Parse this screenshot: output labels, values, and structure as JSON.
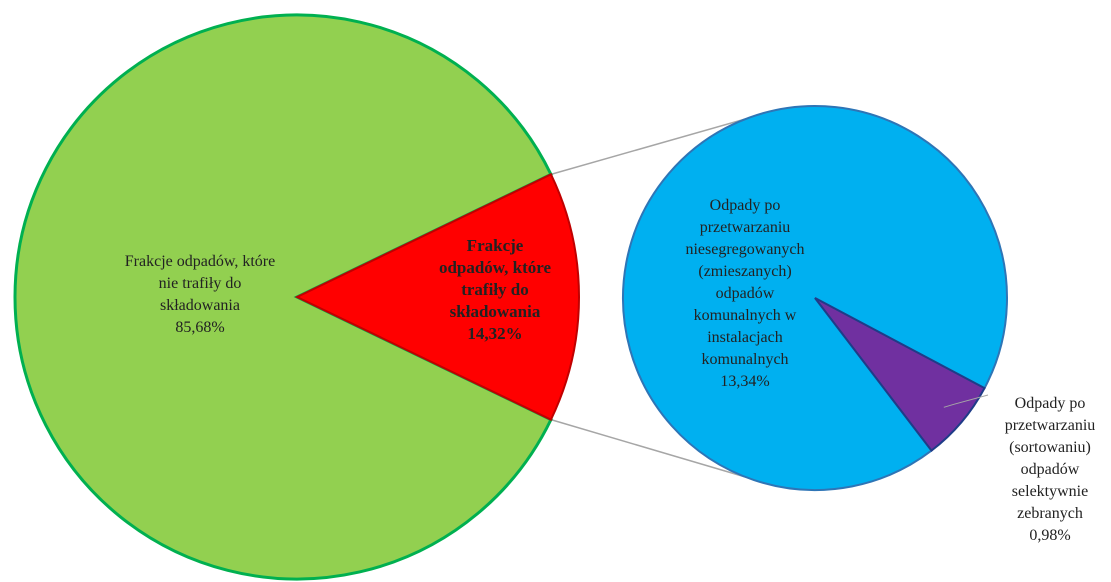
{
  "chart_data": {
    "type": "pie-of-pie",
    "categories": [
      "Frakcje odpadów, które\nnie trafiły do\nskładowania",
      "Frakcje\nodpadów, które\ntrafiły do\nskładowania"
    ],
    "values": [
      85.68,
      14.32
    ],
    "value_labels": [
      "85,68%",
      "14,32%"
    ],
    "colors": [
      "#92d050",
      "#ff0000"
    ],
    "secondary": {
      "categories": [
        "Odpady po\nprzetwarzaniu\nniesegregowanych\n(zmieszanych)\nodpadów\nkomunalnych w\ninstalacjach\nkomunalnych",
        "Odpady po\nprzetwarzaniu\n(sortowaniu)\nodpadów\nselektywnie\nzebranych"
      ],
      "values": [
        13.34,
        0.98
      ],
      "value_labels": [
        "13,34%",
        "0,98%"
      ],
      "colors": [
        "#00b0f0",
        "#7030a0"
      ]
    }
  }
}
